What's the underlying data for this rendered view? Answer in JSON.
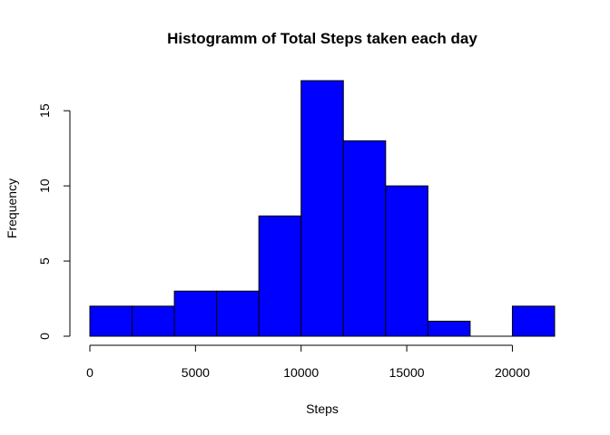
{
  "chart_data": {
    "type": "bar",
    "title": "Histogramm of Total Steps taken each day",
    "xlabel": "Steps",
    "ylabel": "Frequency",
    "bins": [
      {
        "start": 0,
        "end": 2000,
        "count": 2
      },
      {
        "start": 2000,
        "end": 4000,
        "count": 2
      },
      {
        "start": 4000,
        "end": 6000,
        "count": 3
      },
      {
        "start": 6000,
        "end": 8000,
        "count": 3
      },
      {
        "start": 8000,
        "end": 10000,
        "count": 8
      },
      {
        "start": 10000,
        "end": 12000,
        "count": 17
      },
      {
        "start": 12000,
        "end": 14000,
        "count": 13
      },
      {
        "start": 14000,
        "end": 16000,
        "count": 10
      },
      {
        "start": 16000,
        "end": 18000,
        "count": 1
      },
      {
        "start": 18000,
        "end": 20000,
        "count": 0
      },
      {
        "start": 20000,
        "end": 22000,
        "count": 2
      }
    ],
    "xticks": [
      0,
      5000,
      10000,
      15000,
      20000
    ],
    "yticks": [
      0,
      5,
      10,
      15
    ],
    "xlim": [
      0,
      22000
    ],
    "ylim": [
      0,
      17
    ],
    "bar_color": "#0000ff",
    "grid": false,
    "legend": "none"
  }
}
